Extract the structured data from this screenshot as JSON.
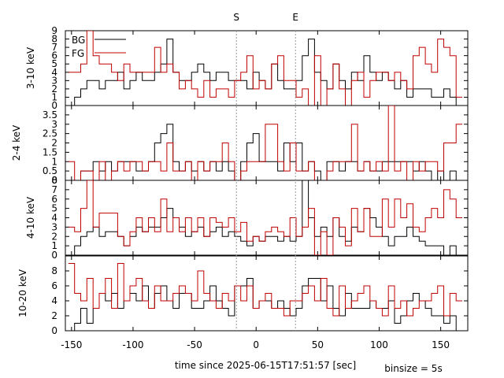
{
  "chart_data": {
    "type": "line",
    "xlabel": "time since 2025-06-15T17:51:57 [sec]",
    "note": "binsize = 5s",
    "xlim": [
      -155,
      172
    ],
    "xticks": [
      -150,
      -100,
      -50,
      0,
      50,
      100,
      150
    ],
    "markers": [
      {
        "label": "S",
        "x": -16
      },
      {
        "label": "E",
        "x": 32
      }
    ],
    "colors": {
      "BG": "#000000",
      "FG": "#c00000",
      "marker": "#999999"
    },
    "legend": [
      "BG",
      "FG"
    ],
    "x": [
      -150,
      -145,
      -140,
      -135,
      -130,
      -125,
      -120,
      -115,
      -110,
      -105,
      -100,
      -95,
      -90,
      -85,
      -80,
      -75,
      -70,
      -65,
      -60,
      -55,
      -50,
      -45,
      -40,
      -35,
      -30,
      -25,
      -20,
      -15,
      -10,
      -5,
      0,
      5,
      10,
      15,
      20,
      25,
      30,
      35,
      40,
      45,
      50,
      55,
      60,
      65,
      70,
      75,
      80,
      85,
      90,
      95,
      100,
      105,
      110,
      115,
      120,
      125,
      130,
      135,
      140,
      145,
      150,
      155,
      160,
      165
    ],
    "panels": [
      {
        "ylabel": "3-10 keV",
        "ylim": [
          0,
          9
        ],
        "yticks": [
          0,
          1,
          2,
          3,
          4,
          5,
          6,
          7,
          8,
          9
        ],
        "series": [
          {
            "name": "BG",
            "values": [
              0,
              1,
              2,
              3,
              3,
              2,
              3,
              3,
              4,
              2,
              3,
              4,
              3,
              3,
              4,
              5,
              8,
              4,
              3,
              3,
              4,
              5,
              4,
              3,
              4,
              4,
              3,
              3,
              3,
              2,
              4,
              3,
              2,
              5,
              3,
              2,
              2,
              3,
              6,
              8,
              4,
              3,
              2,
              5,
              3,
              2,
              4,
              3,
              6,
              4,
              3,
              4,
              3,
              2,
              3,
              1,
              2,
              2,
              2,
              1,
              1,
              2,
              1,
              0
            ]
          },
          {
            "name": "FG",
            "values": [
              4,
              4,
              5,
              9,
              6,
              5,
              5,
              4,
              3,
              5,
              4,
              4,
              4,
              4,
              7,
              4,
              5,
              4,
              2,
              3,
              2,
              1,
              3,
              1,
              2,
              2,
              1,
              3,
              4,
              6,
              2,
              3,
              2,
              5,
              6,
              3,
              3,
              1,
              2,
              0,
              6,
              0,
              2,
              5,
              2,
              0,
              3,
              4,
              1,
              3,
              4,
              4,
              3,
              4,
              3,
              2,
              6,
              7,
              5,
              4,
              8,
              7,
              6,
              1
            ]
          }
        ]
      },
      {
        "ylabel": "2-4 keV",
        "ylim": [
          0,
          4
        ],
        "yticks": [
          0,
          0.5,
          1,
          1.5,
          2,
          2.5,
          3,
          3.5
        ],
        "series": [
          {
            "name": "BG",
            "values": [
              0,
              0,
              0.5,
              0.5,
              1,
              0.5,
              1,
              0.5,
              1,
              1,
              1,
              0.5,
              0.5,
              1,
              2,
              2.5,
              3,
              1,
              0.5,
              1,
              0.5,
              1,
              0.5,
              1,
              0.5,
              1,
              0.5,
              0,
              1,
              2,
              2.5,
              1,
              1,
              1,
              0.5,
              2,
              1,
              2,
              0.5,
              1,
              0.5,
              0,
              1,
              1,
              0.5,
              1,
              1,
              0.5,
              1,
              0.5,
              0.5,
              1,
              1,
              1,
              1,
              1,
              0.5,
              1,
              0.5,
              0,
              0.5,
              0,
              0.5,
              0
            ]
          },
          {
            "name": "FG",
            "values": [
              1,
              0,
              0.5,
              0.5,
              0,
              1,
              0,
              0.5,
              1,
              0.5,
              1,
              1,
              0.5,
              1,
              1,
              0.5,
              2,
              0.5,
              0.5,
              1,
              0,
              1,
              0.5,
              1,
              1,
              2,
              1,
              0,
              0.5,
              1,
              1,
              1,
              3,
              3,
              1,
              0.5,
              2,
              0.5,
              0.5,
              1,
              0,
              0,
              0.5,
              1,
              1,
              1,
              3,
              0.5,
              1,
              0.5,
              1,
              0.5,
              4,
              0.5,
              1,
              0,
              1,
              0.5,
              1,
              1,
              0.5,
              2,
              2,
              3
            ]
          }
        ]
      },
      {
        "ylabel": "4-10 keV",
        "ylim": [
          0,
          8
        ],
        "yticks": [
          0,
          1,
          2,
          3,
          4,
          5,
          6,
          7,
          8
        ],
        "series": [
          {
            "name": "BG",
            "values": [
              0,
              1,
              2,
              2.5,
              3,
              2,
              2.5,
              2.5,
              2,
              1,
              2,
              3,
              2.5,
              3,
              3,
              4,
              5,
              4,
              3,
              2,
              2.5,
              3,
              2,
              2.5,
              3,
              2,
              2.5,
              2,
              1.5,
              1,
              2,
              1.5,
              2,
              2,
              1.5,
              2,
              1.5,
              2,
              8,
              4,
              2,
              3,
              2,
              4,
              2,
              1.5,
              3,
              2.5,
              5,
              4,
              3,
              2,
              1,
              2,
              2,
              3,
              2,
              1.5,
              1,
              1,
              1,
              0,
              1,
              0
            ]
          },
          {
            "name": "FG",
            "values": [
              3,
              2.5,
              5,
              8,
              3,
              4.5,
              4.5,
              4.5,
              2,
              1,
              2.5,
              4,
              2.5,
              4,
              2.5,
              6,
              2.5,
              4,
              2.5,
              4,
              2.5,
              4,
              2,
              4,
              3.5,
              3,
              4,
              2.5,
              3.5,
              1.5,
              2,
              1.5,
              2.5,
              3,
              2.5,
              2,
              4,
              2,
              3,
              5,
              0,
              2.5,
              0,
              4,
              3,
              1,
              5,
              2.5,
              5,
              2,
              2,
              6,
              3,
              6,
              4,
              5.5,
              3,
              2.5,
              4,
              5,
              4,
              7,
              6,
              4
            ]
          }
        ]
      },
      {
        "ylabel": "10-20 keV",
        "ylim": [
          0,
          10
        ],
        "yticks": [
          0,
          2,
          4,
          6,
          8
        ],
        "series": [
          {
            "name": "BG",
            "values": [
              0,
              1,
              3,
              1,
              3,
              5,
              4,
              5,
              3,
              4,
              5,
              4,
              6,
              3,
              5,
              6,
              4,
              3,
              5,
              5,
              3,
              3,
              4,
              6,
              4,
              3,
              2,
              6,
              6,
              7,
              3,
              4,
              4,
              3,
              4,
              3,
              2,
              3,
              6,
              7,
              7,
              4,
              6,
              3,
              2,
              5,
              3,
              3,
              3,
              4,
              3,
              3,
              4,
              1,
              2,
              4,
              5,
              4,
              3,
              2,
              2,
              1,
              2,
              0
            ]
          },
          {
            "name": "FG",
            "values": [
              9,
              5,
              4,
              7,
              3,
              5,
              7,
              3,
              9,
              4,
              6,
              7,
              4,
              3,
              6,
              4,
              4,
              5,
              6,
              5,
              4,
              8,
              5,
              4,
              3,
              5,
              4,
              6,
              4,
              6,
              3,
              4,
              5,
              3,
              3,
              2,
              4,
              4,
              5,
              6,
              4,
              7,
              3,
              2,
              6,
              3,
              4,
              5,
              6,
              4,
              3,
              2,
              6,
              3,
              4,
              2,
              3,
              4,
              4,
              5,
              6,
              2,
              5,
              4
            ]
          }
        ]
      }
    ]
  }
}
